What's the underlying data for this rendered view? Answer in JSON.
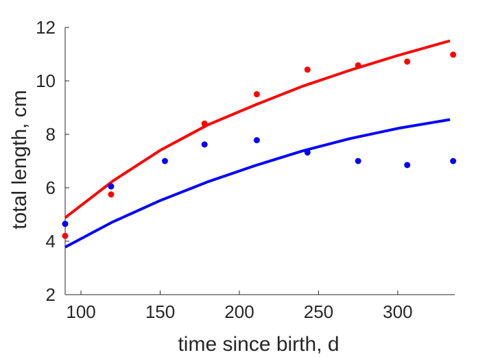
{
  "chart_data": {
    "type": "scatter",
    "title": "",
    "xlabel": "time since birth, d",
    "ylabel": "total length, cm",
    "xlim": [
      90,
      336
    ],
    "ylim": [
      2,
      12
    ],
    "xticks": [
      100,
      150,
      200,
      250,
      300
    ],
    "yticks": [
      2,
      4,
      6,
      8,
      10,
      12
    ],
    "grid": false,
    "series": [
      {
        "color": "#ff0000",
        "kind": "points",
        "x": [
          90,
          119,
          178,
          211,
          243,
          275,
          306,
          335
        ],
        "y": [
          4.2,
          5.75,
          8.4,
          9.5,
          10.42,
          10.58,
          10.72,
          10.98
        ]
      },
      {
        "color": "#0000ff",
        "kind": "points",
        "x": [
          90,
          119,
          153,
          178,
          211,
          243,
          275,
          306,
          335
        ],
        "y": [
          4.65,
          6.05,
          7.0,
          7.62,
          7.78,
          7.32,
          7.0,
          6.85,
          7.0
        ]
      },
      {
        "color": "#ff0000",
        "kind": "line",
        "x": [
          90,
          120,
          150,
          180,
          210,
          240,
          270,
          300,
          333
        ],
        "y": [
          4.88,
          6.25,
          7.4,
          8.35,
          9.1,
          9.8,
          10.4,
          10.95,
          11.5
        ]
      },
      {
        "color": "#0000ff",
        "kind": "line",
        "x": [
          90,
          120,
          150,
          180,
          210,
          240,
          270,
          300,
          333
        ],
        "y": [
          3.78,
          4.72,
          5.52,
          6.22,
          6.83,
          7.38,
          7.84,
          8.22,
          8.55
        ]
      }
    ]
  }
}
